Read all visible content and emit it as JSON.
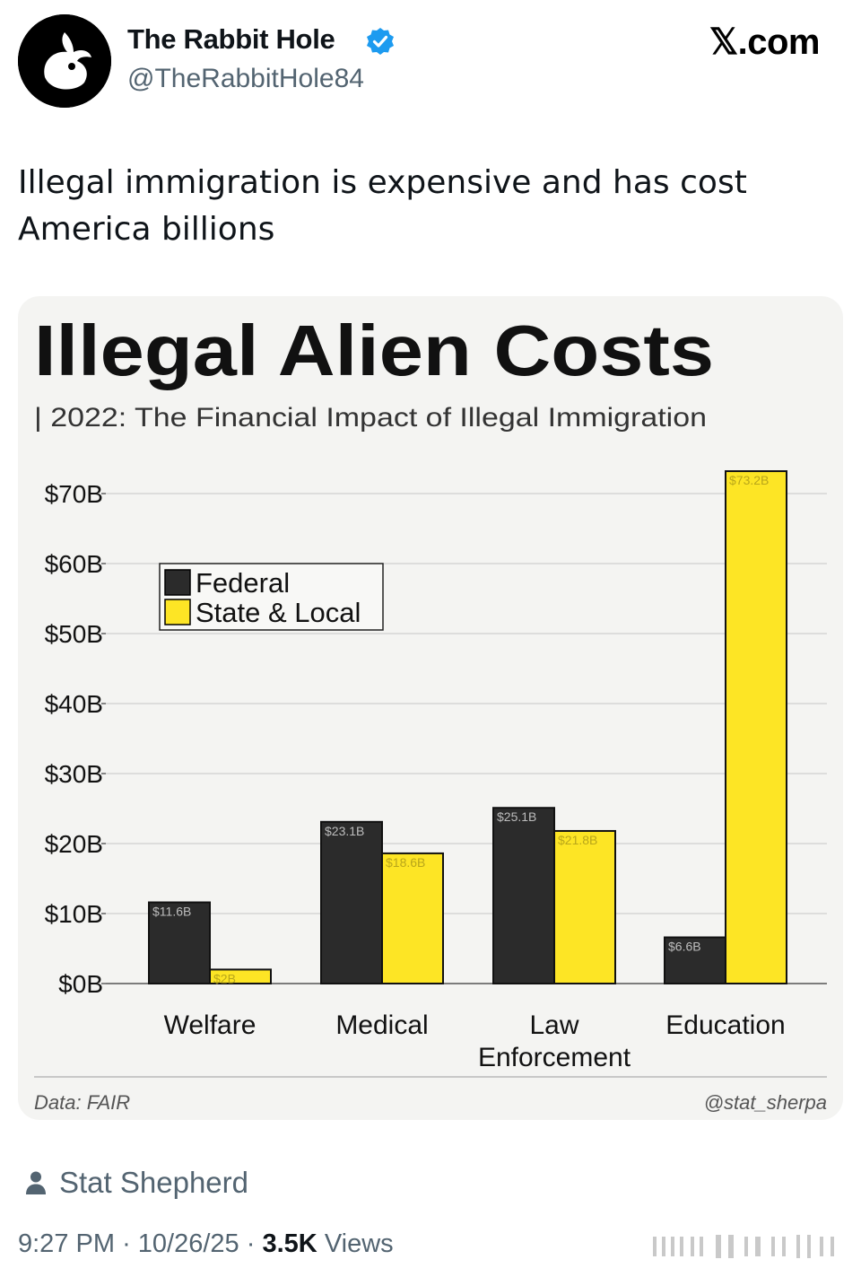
{
  "author": {
    "display_name": "The Rabbit Hole",
    "handle": "@TheRabbitHole84",
    "verified": true,
    "avatar_icon": "rabbit-logo-icon"
  },
  "brand": {
    "label": "𝕏.com"
  },
  "tweet": {
    "text_lines": [
      "Illegal immigration is expensive and has cost",
      "America billions"
    ]
  },
  "attribution": {
    "icon": "person-icon",
    "name": "Stat Shepherd"
  },
  "meta": {
    "time": "9:27 PM",
    "separator": "·",
    "date": "10/26/25",
    "views_count": "3.5K",
    "views_label": "Views"
  },
  "colors": {
    "federal": "#2b2b2b",
    "state_local": "#fde525",
    "card_background": "#f4f4f2",
    "verified": "#1d9bf0"
  },
  "chart_data": {
    "type": "bar",
    "title": "Illegal Alien Costs",
    "subtitle": "| 2022: The Financial Impact of Illegal Immigration",
    "categories": [
      [
        "Welfare"
      ],
      [
        "Medical"
      ],
      [
        "Law",
        "Enforcement"
      ],
      [
        "Education"
      ]
    ],
    "series": [
      {
        "name": "Federal",
        "values": [
          11.6,
          23.1,
          25.1,
          6.6
        ],
        "labels": [
          "$11.6B",
          "$23.1B",
          "$25.1B",
          "$6.6B"
        ]
      },
      {
        "name": "State & Local",
        "values": [
          2,
          18.6,
          21.8,
          73.2
        ],
        "labels": [
          "$2B",
          "$18.6B",
          "$21.8B",
          "$73.2B"
        ]
      }
    ],
    "yticks": [
      "$0B",
      "$10B",
      "$20B",
      "$30B",
      "$40B",
      "$50B",
      "$60B",
      "$70B"
    ],
    "ytick_values": [
      0,
      10,
      20,
      30,
      40,
      50,
      60,
      70
    ],
    "ylim": [
      0,
      73.2
    ],
    "grid": true,
    "legend_position": "top-left",
    "source": "Data: FAIR",
    "credit": "@stat_sherpa"
  }
}
